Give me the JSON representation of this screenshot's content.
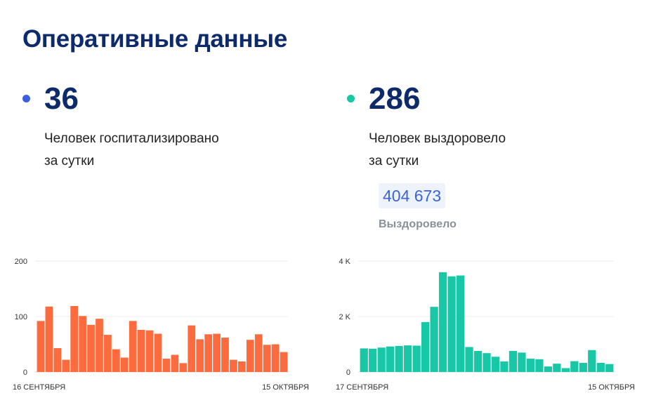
{
  "header": {
    "title": "Оперативные данные"
  },
  "stats": {
    "hospitalized": {
      "value": "36",
      "line1": "Человек госпитализировано",
      "line2": "за сутки",
      "color": "#3b5fe0"
    },
    "recovered": {
      "value": "286",
      "line1": "Человек выздоровело",
      "line2": "за сутки",
      "color": "#17c7a6"
    }
  },
  "total": {
    "value": "404 673",
    "label": "Выздоровело"
  },
  "chart_data": [
    {
      "type": "bar",
      "name": "hospitalized",
      "color": "#fb6b3e",
      "values": [
        92,
        118,
        43,
        22,
        119,
        101,
        85,
        96,
        67,
        41,
        26,
        92,
        76,
        75,
        69,
        24,
        31,
        16,
        84,
        59,
        68,
        69,
        62,
        22,
        19,
        58,
        68,
        49,
        50,
        36
      ],
      "ylim": [
        0,
        200
      ],
      "yticks": [
        {
          "v": 0,
          "label": "0"
        },
        {
          "v": 100,
          "label": "100"
        },
        {
          "v": 200,
          "label": "200"
        }
      ],
      "x_start_label": "16 СЕНТЯБРЯ",
      "x_end_label": "15 ОКТЯБРЯ"
    },
    {
      "type": "bar",
      "name": "recovered",
      "color": "#17c7a6",
      "values": [
        850,
        840,
        880,
        920,
        940,
        960,
        950,
        1800,
        2350,
        3600,
        3450,
        3480,
        900,
        760,
        680,
        550,
        380,
        760,
        700,
        480,
        460,
        200,
        300,
        140,
        390,
        330,
        790,
        330,
        286
      ],
      "ylim": [
        0,
        4000
      ],
      "yticks": [
        {
          "v": 0,
          "label": "0"
        },
        {
          "v": 2000,
          "label": "2 K"
        },
        {
          "v": 4000,
          "label": "4 K"
        }
      ],
      "x_start_label": "17 СЕНТЯБРЯ",
      "x_end_label": "15 ОКТЯБРЯ"
    }
  ]
}
